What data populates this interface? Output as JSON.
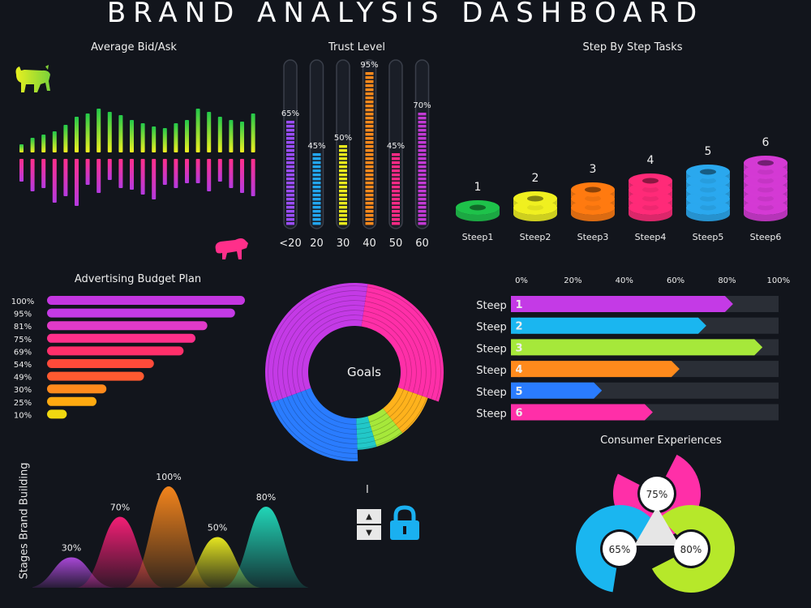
{
  "dashboard": {
    "title": "BRAND ANALYSIS DASHBOARD",
    "bid_ask_title": "Average Bid/Ask",
    "trust_title": "Trust Level",
    "steps_title": "Step By Step Tasks",
    "budget_title": "Advertising Budget Plan",
    "goals_label": "Goals",
    "consumer_title": "Consumer Experiences",
    "stages_title": "Stages Brand Building",
    "cursor_mark": "I"
  },
  "icons": [
    "bull-icon",
    "bear-icon",
    "lock-icon",
    "caret-up-icon",
    "caret-down-icon"
  ],
  "chart_data": [
    {
      "type": "bar",
      "name": "bid_ask",
      "title": "Average Bid/Ask",
      "series": [
        {
          "values": [
            10,
            18,
            22,
            26,
            34,
            44,
            48,
            54,
            50,
            46,
            40,
            36,
            32,
            30,
            36,
            40,
            54,
            50,
            44,
            40,
            38,
            48,
            52
          ]
        },
        {
          "values": [
            28,
            40,
            36,
            54,
            46,
            58,
            32,
            42,
            26,
            36,
            38,
            44,
            50,
            32,
            36,
            30,
            30,
            40,
            28,
            36,
            42,
            46,
            52
          ]
        }
      ]
    },
    {
      "type": "bar",
      "name": "trust_level",
      "title": "Trust Level",
      "categories": [
        "<20",
        "20",
        "30",
        "40",
        "50",
        "60"
      ],
      "values": [
        65,
        45,
        50,
        95,
        45,
        70
      ],
      "value_labels": [
        "65%",
        "45%",
        "50%",
        "95%",
        "45%",
        "70%"
      ],
      "ylim": [
        0,
        100
      ],
      "colors": [
        "#9b4dff",
        "#22a6f0",
        "#e8e81c",
        "#ff8a1c",
        "#ff2a86",
        "#c23ad4"
      ]
    },
    {
      "type": "bar",
      "name": "step_by_step",
      "title": "Step By Step Tasks",
      "categories": [
        "Steep1",
        "Steep2",
        "Steep3",
        "Steep4",
        "Steep5",
        "Steep6"
      ],
      "values": [
        1,
        2,
        3,
        4,
        5,
        6
      ],
      "value_labels": [
        "1",
        "2",
        "3",
        "4",
        "5",
        "6"
      ],
      "colors": [
        "#1ec24a",
        "#f0f020",
        "#ff7a10",
        "#ff2a78",
        "#2aa8ee",
        "#d43ad4"
      ]
    },
    {
      "type": "bar",
      "name": "advertising_budget",
      "title": "Advertising Budget Plan",
      "categories": [
        "100%",
        "95%",
        "81%",
        "75%",
        "69%",
        "54%",
        "49%",
        "30%",
        "25%",
        "10%"
      ],
      "values": [
        100,
        95,
        81,
        75,
        69,
        54,
        49,
        30,
        25,
        10
      ],
      "colors": [
        "#c436e0",
        "#c43ae6",
        "#e03ac8",
        "#ff2f8a",
        "#ff2f6a",
        "#ff4a3a",
        "#ff5a30",
        "#ff8a1c",
        "#ffaa10",
        "#f0d810"
      ]
    },
    {
      "type": "pie",
      "name": "goals",
      "values": [
        28,
        9,
        6,
        4,
        20,
        33
      ],
      "colors": [
        "#ff2fa8",
        "#ffb21c",
        "#a6e83a",
        "#22c8c8",
        "#2a7cff",
        "#c43ae6"
      ]
    },
    {
      "type": "bar",
      "name": "steep_progress",
      "categories": [
        "Steep",
        "Steep",
        "Steep",
        "Steep",
        "Steep",
        "Steep"
      ],
      "step_numbers": [
        "1",
        "2",
        "3",
        "4",
        "5",
        "6"
      ],
      "values": [
        83,
        73,
        94,
        63,
        34,
        53
      ],
      "ticks": [
        "0%",
        "20%",
        "40%",
        "60%",
        "80%",
        "100%"
      ],
      "xlim": [
        0,
        100
      ],
      "colors": [
        "#c43ae6",
        "#1ab6f0",
        "#a6e83a",
        "#ff8a1c",
        "#2a7cff",
        "#ff2fa8"
      ]
    },
    {
      "type": "pie",
      "name": "consumer_experiences",
      "title": "Consumer Experiences",
      "values": [
        75,
        65,
        80
      ],
      "value_labels": [
        "75%",
        "65%",
        "80%"
      ],
      "colors": [
        "#ff2fa8",
        "#1ab6f0",
        "#b6e82a"
      ]
    },
    {
      "type": "area",
      "name": "stages_brand_building",
      "title": "Stages Brand Building",
      "values": [
        30,
        70,
        100,
        50,
        80
      ],
      "value_labels": [
        "30%",
        "70%",
        "100%",
        "50%",
        "80%"
      ],
      "ylim": [
        0,
        100
      ],
      "colors": [
        "#b04ae0",
        "#ff1f7a",
        "#ff8a1c",
        "#f0f020",
        "#22e0c0"
      ]
    }
  ]
}
